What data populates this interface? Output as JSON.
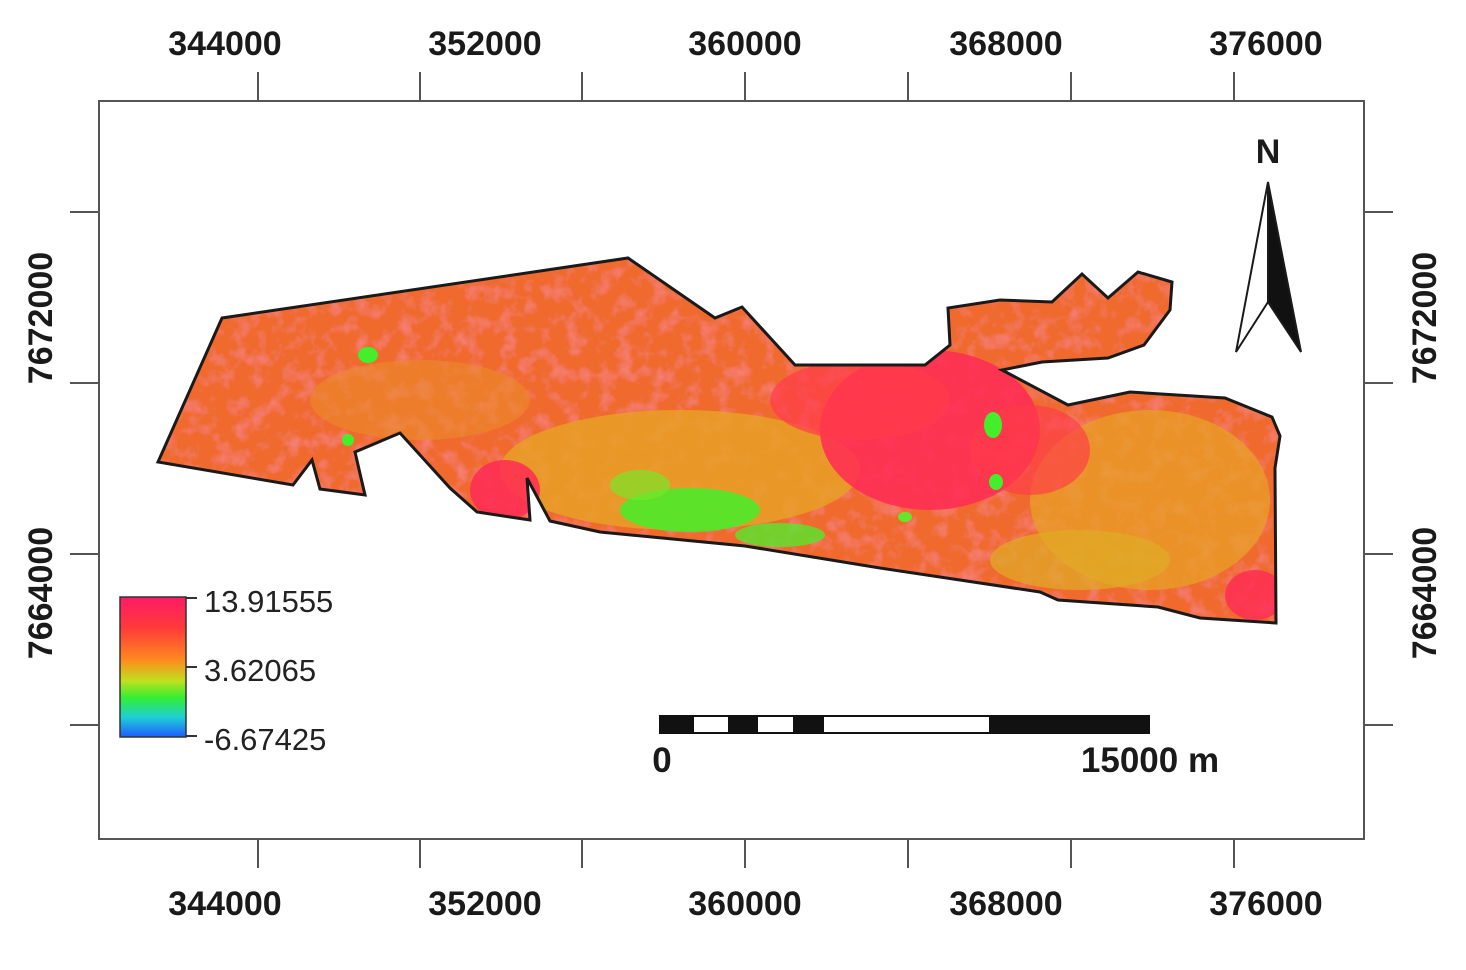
{
  "map": {
    "x_ticks": [
      "344000",
      "352000",
      "360000",
      "368000",
      "376000"
    ],
    "y_ticks": [
      "7672000",
      "7664000"
    ],
    "north_arrow_label": "N",
    "scale_bar": {
      "start_label": "0",
      "end_label": "15000 m"
    },
    "legend": {
      "max_label": "13.91555",
      "mid_label": "3.62065",
      "min_label": "-6.67425",
      "colors": [
        "#ff1a66",
        "#ff3a3a",
        "#ff8a1e",
        "#bfe11e",
        "#33ee33",
        "#1ecfd6",
        "#1f5cff"
      ]
    },
    "colors": {
      "high": "#ff2a55",
      "upper": "#f2692e",
      "mid": "#e8a026",
      "low": "#44ee2a"
    }
  }
}
